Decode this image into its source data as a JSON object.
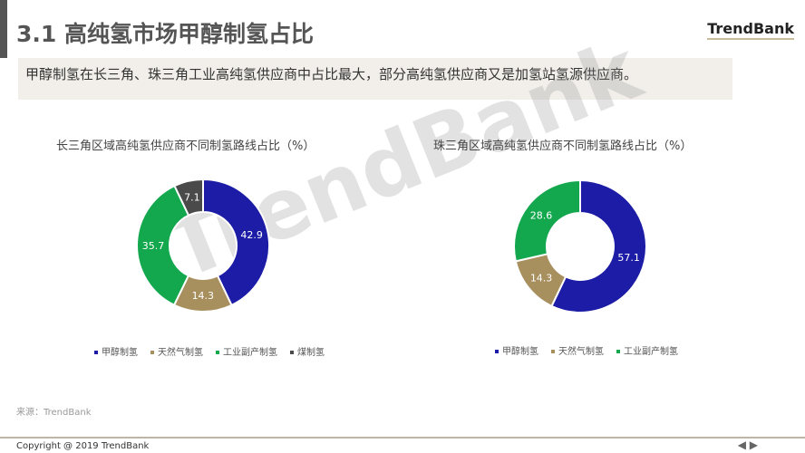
{
  "header": {
    "title": "3.1 高纯氢市场甲醇制氢占比",
    "brand": "TrendBank"
  },
  "summary": "甲醇制氢在长三角、珠三角工业高纯氢供应商中占比最大，部分高纯氢供应商又是加氢站氢源供应商。",
  "watermark": "TrendBank",
  "source": "来源：TrendBank",
  "footer": {
    "copyright": "Copyright @ 2019 TrendBank",
    "prev": "◀",
    "next": "▶"
  },
  "colors": {
    "甲醇制氢": "#1c1ca6",
    "天然气制氢": "#a88f5e",
    "工业副产制氢": "#14a84e",
    "煤制氢": "#4a4a4a"
  },
  "chart_data": [
    {
      "type": "pie",
      "variant": "donut",
      "title": "长三角区域高纯氢供应商不同制氢路线占比（%）",
      "categories": [
        "甲醇制氢",
        "天然气制氢",
        "工业副产制氢",
        "煤制氢"
      ],
      "values": [
        42.9,
        14.3,
        35.7,
        7.1
      ],
      "legend": "bottom"
    },
    {
      "type": "pie",
      "variant": "donut",
      "title": "珠三角区域高纯氢供应商不同制氢路线占比（%）",
      "categories": [
        "甲醇制氢",
        "天然气制氢",
        "工业副产制氢"
      ],
      "values": [
        57.1,
        14.3,
        28.6
      ],
      "legend": "bottom"
    }
  ]
}
